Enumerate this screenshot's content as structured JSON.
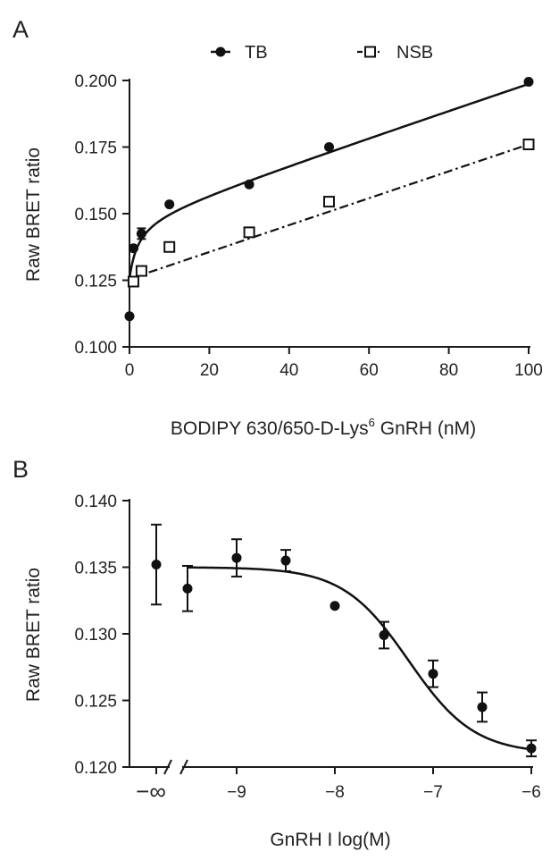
{
  "chart_data": [
    {
      "panel": "A",
      "type": "scatter",
      "xlabel_main": "BODIPY 630/650-D-Lys",
      "xlabel_sup": "6",
      "xlabel_tail": " GnRH (nM)",
      "ylabel": "Raw BRET ratio",
      "xlim": [
        0,
        100
      ],
      "ylim": [
        0.1,
        0.2
      ],
      "xticks": [
        0,
        20,
        40,
        60,
        80,
        100
      ],
      "xtick_labels": [
        "0",
        "20",
        "40",
        "60",
        "80",
        "100"
      ],
      "yticks": [
        0.1,
        0.125,
        0.15,
        0.175,
        0.2
      ],
      "ytick_labels": [
        "0.100",
        "0.125",
        "0.150",
        "0.175",
        "0.200"
      ],
      "grid": false,
      "legend_position": "top",
      "series": [
        {
          "name": "TB",
          "marker": "filled-circle",
          "line": "solid",
          "x": [
            0,
            1,
            3,
            10,
            30,
            50,
            100
          ],
          "y": [
            0.1115,
            0.137,
            0.1425,
            0.1535,
            0.161,
            0.175,
            0.1995
          ],
          "err": [
            0,
            0,
            0.002,
            0,
            0,
            0,
            0
          ]
        },
        {
          "name": "NSB",
          "marker": "open-square",
          "line": "dash-dot",
          "x": [
            1,
            3,
            10,
            30,
            50,
            100
          ],
          "y": [
            0.1245,
            0.1285,
            0.1375,
            0.143,
            0.1545,
            0.176
          ],
          "err": [
            0,
            0,
            0,
            0,
            0,
            0
          ]
        }
      ]
    },
    {
      "panel": "B",
      "type": "scatter",
      "xlabel": "GnRH I log(M)",
      "ylabel": "Raw BRET ratio",
      "xlim": [
        -9.5,
        -6
      ],
      "ylim": [
        0.12,
        0.14
      ],
      "xticks": [
        -9,
        -8,
        -7,
        -6
      ],
      "xtick_labels": [
        "−9",
        "−8",
        "−7",
        "−6"
      ],
      "x_break_label": "−∞",
      "yticks": [
        0.12,
        0.125,
        0.13,
        0.135,
        0.14
      ],
      "ytick_labels": [
        "0.120",
        "0.125",
        "0.130",
        "0.135",
        "0.140"
      ],
      "grid": false,
      "infinity_point": {
        "y": 0.1352,
        "err": 0.003
      },
      "series": [
        {
          "marker": "filled-circle",
          "line": "solid",
          "x": [
            -9.5,
            -9,
            -8.5,
            -8,
            -7.5,
            -7,
            -6.5,
            -6
          ],
          "y": [
            0.1334,
            0.1357,
            0.1355,
            0.1321,
            0.1299,
            0.127,
            0.1245,
            0.1214
          ],
          "err": [
            0.0017,
            0.0014,
            0.0008,
            0,
            0.001,
            0.001,
            0.0011,
            0.0006
          ]
        }
      ]
    }
  ]
}
